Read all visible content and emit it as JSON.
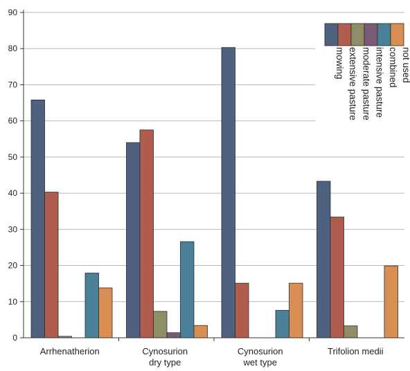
{
  "chart_data": {
    "type": "bar",
    "title": "",
    "xlabel": "",
    "ylabel": "",
    "ylim": [
      0,
      90
    ],
    "yticks": [
      0,
      10,
      20,
      30,
      40,
      50,
      60,
      70,
      80,
      90
    ],
    "grid": true,
    "legend_position": "top-right",
    "categories": [
      [
        "Arrhenatherion"
      ],
      [
        "Cynosurion",
        "dry type"
      ],
      [
        "Cynosurion",
        "wet type"
      ],
      [
        "Trifolion medii"
      ]
    ],
    "series": [
      {
        "name": "mowing",
        "color": "#4e6280",
        "values": [
          65.8,
          54.0,
          80.3,
          43.3
        ]
      },
      {
        "name": "extensive pasture",
        "color": "#b05d50",
        "values": [
          40.3,
          57.5,
          15.1,
          33.4
        ]
      },
      {
        "name": "moderate pasture",
        "color": "#8f8f67",
        "values": [
          0.4,
          7.3,
          0,
          3.3
        ]
      },
      {
        "name": "intensive pasture",
        "color": "#7b5a77",
        "values": [
          0,
          1.4,
          0,
          0
        ]
      },
      {
        "name": "combined",
        "color": "#4a8098",
        "values": [
          17.9,
          26.6,
          7.6,
          0
        ]
      },
      {
        "name": "not used",
        "color": "#d98e53",
        "values": [
          13.8,
          3.4,
          15.1,
          19.9
        ]
      }
    ]
  }
}
